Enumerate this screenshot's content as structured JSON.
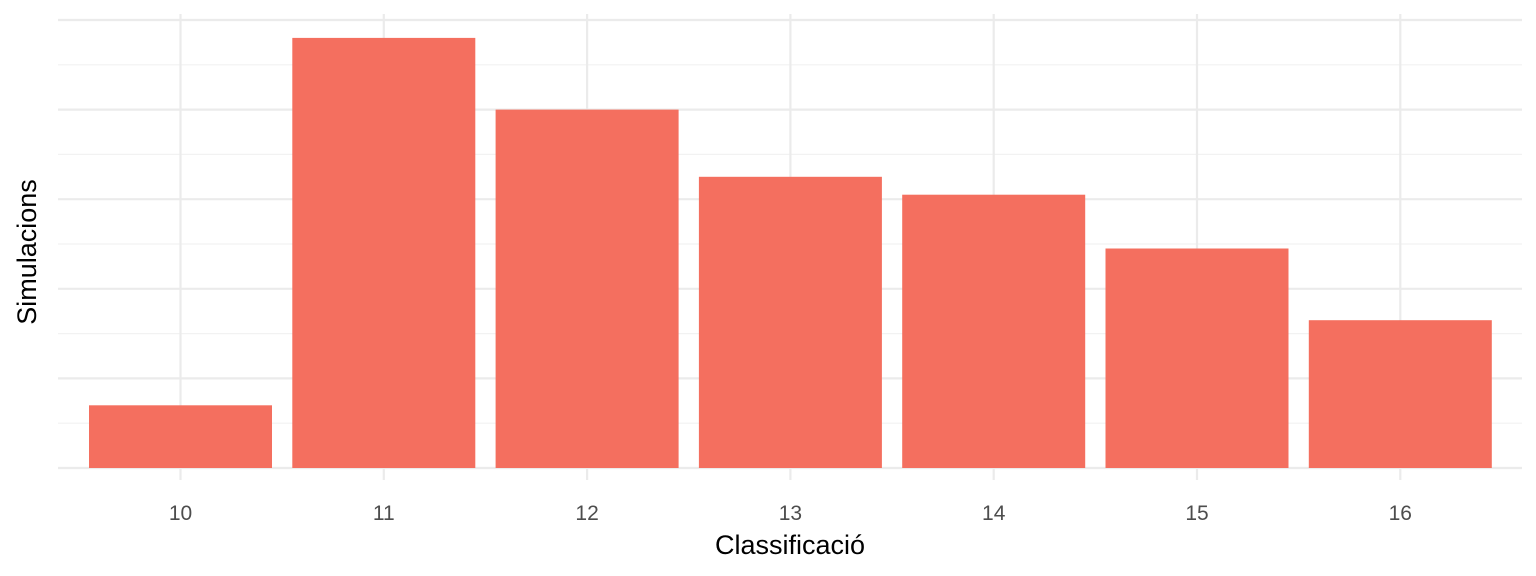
{
  "chart_data": {
    "type": "bar",
    "categories": [
      "10",
      "11",
      "12",
      "13",
      "14",
      "15",
      "16"
    ],
    "values": [
      1.4,
      9.6,
      8.0,
      6.5,
      6.1,
      4.9,
      3.3
    ],
    "xlabel": "Classificació",
    "ylabel": "Simulacions",
    "ylim": [
      0,
      10
    ],
    "y_tick_labels_shown": false,
    "grid": true,
    "legend": "none",
    "colors": {
      "bar": "#f46f5f",
      "grid_major": "#ebebeb",
      "grid_minor": "#f2f2f2",
      "tick_text": "#4d4d4d",
      "title_text": "#000000"
    }
  }
}
